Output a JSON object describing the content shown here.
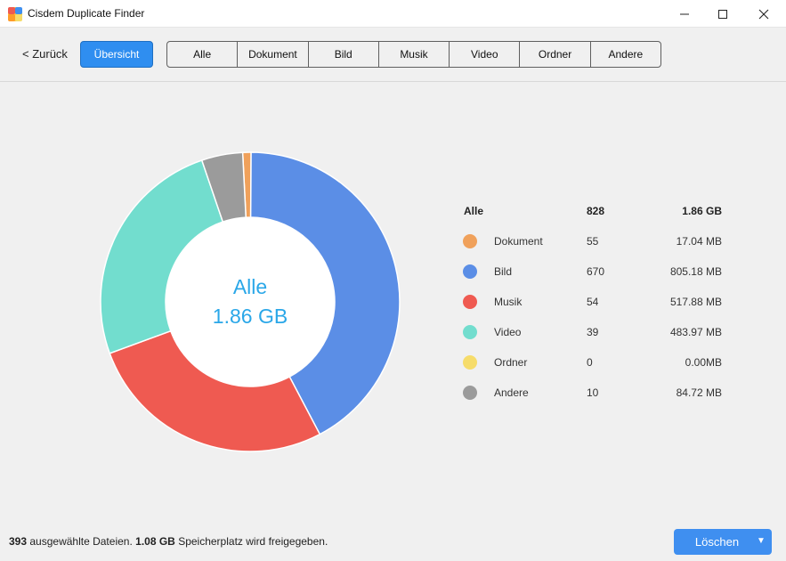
{
  "window": {
    "title": "Cisdem Duplicate Finder",
    "controls": [
      "minimize",
      "maximize",
      "close"
    ]
  },
  "toolbar": {
    "back_label": "< Zurück",
    "overview_label": "Übersicht",
    "tabs": [
      "Alle",
      "Dokument",
      "Bild",
      "Musik",
      "Video",
      "Ordner",
      "Andere"
    ]
  },
  "chart_data": {
    "type": "pie",
    "center_title": "Alle",
    "center_value": "1.86 GB",
    "total": {
      "label": "Alle",
      "count": 828,
      "size": "1.86 GB"
    },
    "categories": [
      "Dokument",
      "Bild",
      "Musik",
      "Video",
      "Ordner",
      "Andere"
    ],
    "counts": [
      55,
      670,
      54,
      39,
      0,
      10
    ],
    "sizes": [
      "17.04 MB",
      "805.18 MB",
      "517.88 MB",
      "483.97 MB",
      "0.00MB",
      "84.72 MB"
    ],
    "values_mb": [
      17.04,
      805.18,
      517.88,
      483.97,
      0,
      84.72
    ],
    "colors": [
      "#f0a15b",
      "#5b8ee6",
      "#ef5a51",
      "#72ddce",
      "#f6dc6a",
      "#9b9b9b"
    ],
    "legend": "right"
  },
  "status": {
    "selected_count": "393",
    "selected_text": "ausgewählte Dateien.",
    "size": "1.08 GB",
    "size_text": "Speicherplatz wird freigegeben."
  },
  "delete_button": {
    "label": "Löschen",
    "caret": "▼"
  }
}
